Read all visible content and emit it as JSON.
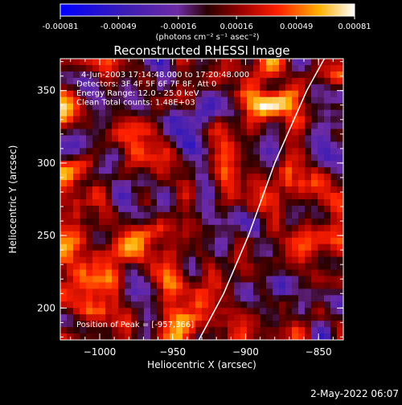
{
  "chart_data": {
    "type": "heatmap",
    "title": "Reconstructed RHESSI Image",
    "xlabel": "Heliocentric X (arcsec)",
    "ylabel": "Heliocentric Y (arcsec)",
    "xlim": [
      -1027,
      -833
    ],
    "ylim": [
      178,
      372
    ],
    "x_ticks": [
      -1000,
      -950,
      -900,
      -850
    ],
    "x_tick_labels": [
      "−1000",
      "−950",
      "−900",
      "−850"
    ],
    "y_ticks": [
      200,
      250,
      300,
      350
    ],
    "y_tick_labels": [
      "200",
      "250",
      "300",
      "350"
    ],
    "colorbar": {
      "ticks": [
        "-0.00081",
        "-0.00049",
        "-0.00016",
        "0.00016",
        "0.00049",
        "0.00081"
      ],
      "values": [
        -0.00081,
        -0.00049,
        -0.00016,
        0.00016,
        0.00049,
        0.00081
      ],
      "unit_label": "(photons cm⁻² s⁻¹ asec⁻²)"
    },
    "annotations": [
      "4-Jun-2003 17:14:48.000 to 17:20:48.000",
      "Detectors: 3F 4F 5F 6F 7F 8F, Att 0",
      "Energy Range: 12.0 - 25.0 keV",
      "Clean     Total counts: 1.48E+03"
    ],
    "peak_label": "Position of Peak = [-957,366]",
    "limb_curve": [
      [
        -932,
        178
      ],
      [
        -915,
        210
      ],
      [
        -898,
        250
      ],
      [
        -880,
        300
      ],
      [
        -858,
        350
      ],
      [
        -846,
        372
      ]
    ],
    "grid": false
  },
  "footer_date": "2-May-2022 06:07"
}
